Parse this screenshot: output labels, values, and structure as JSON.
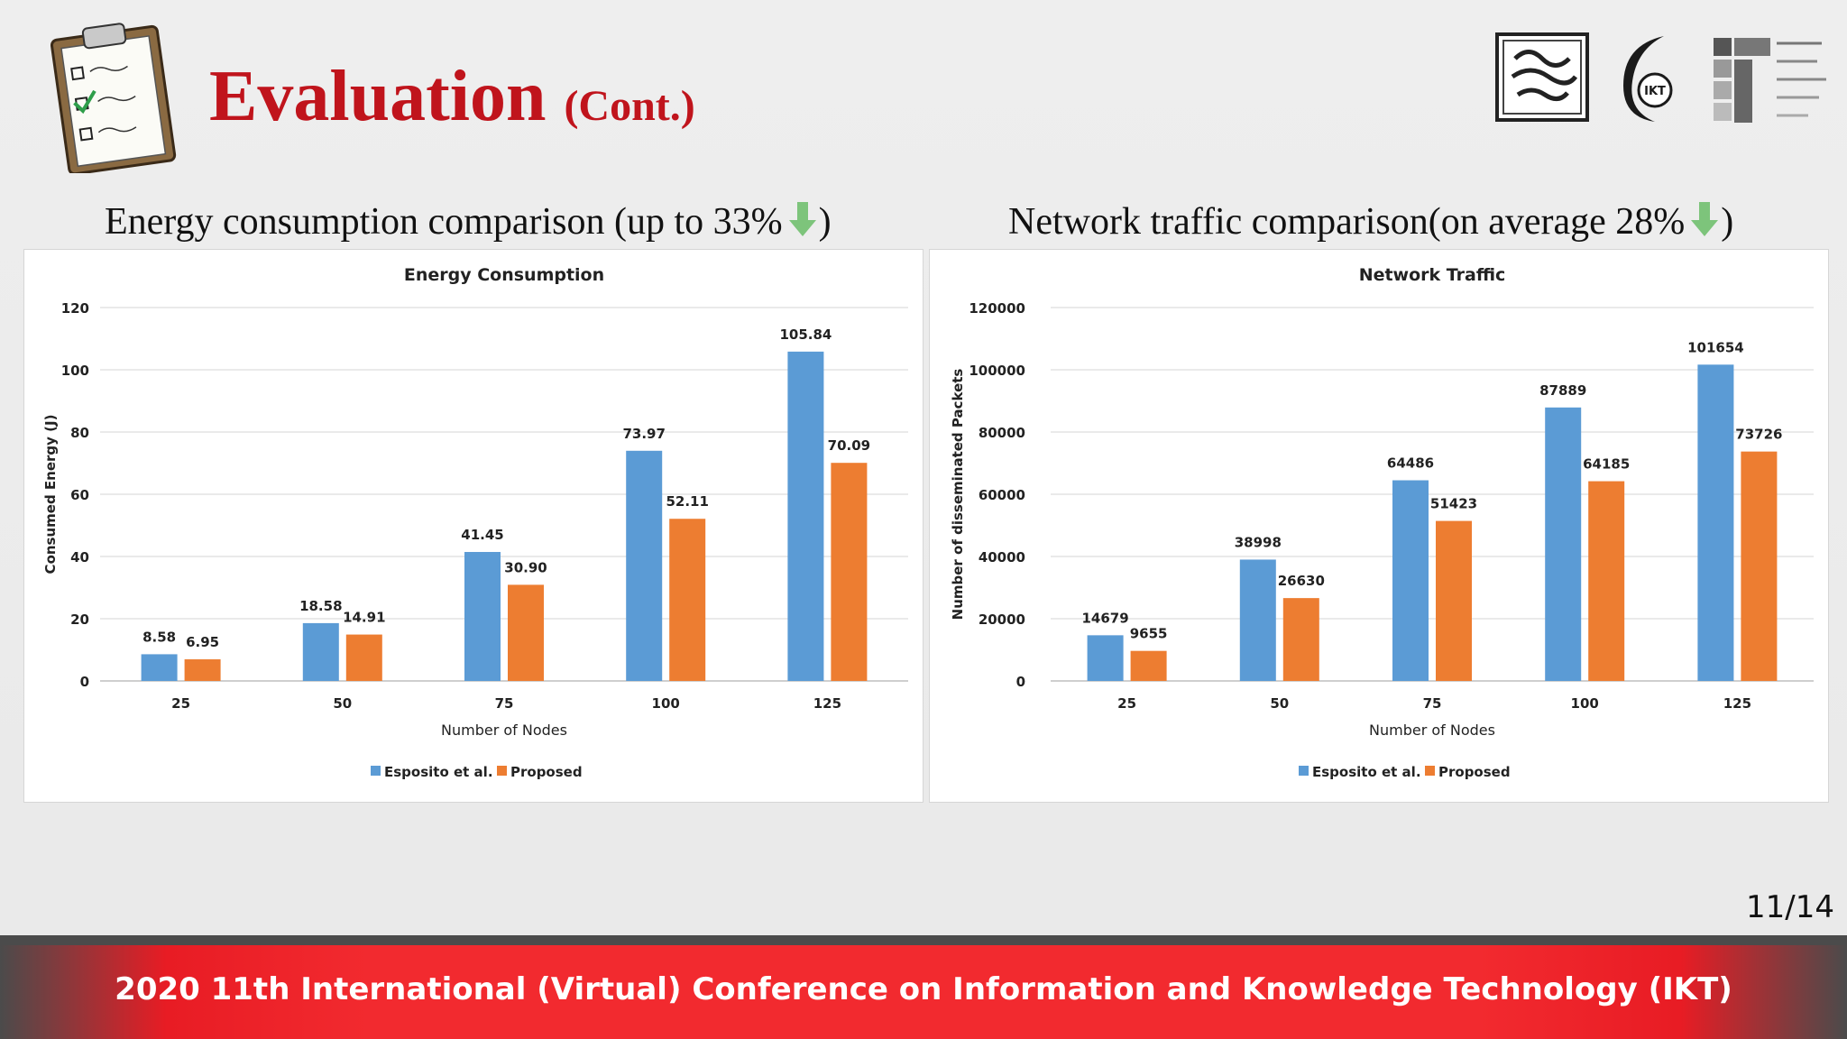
{
  "header": {
    "title": "Evaluation",
    "title_suffix": "(Cont.)"
  },
  "left_caption": {
    "text": "Energy consumption comparison (up to 33%",
    "close": ")"
  },
  "right_caption": {
    "text": "Network traffic comparison(on average 28%",
    "close": ")"
  },
  "icons": {
    "clipboard": "checklist-clipboard-icon",
    "arrow": "down-arrow-icon",
    "logos": [
      "university-logo",
      "ikt-logo",
      "itrc-logo"
    ]
  },
  "colors": {
    "title": "#c0141c",
    "series1": "#5b9bd5",
    "series2": "#ed7d31",
    "arrow": "#7dc47b",
    "footer": "#f22a2f"
  },
  "page_number": "11/14",
  "footer": {
    "text": "2020 11th International (Virtual) Conference on Information and Knowledge Technology (IKT)"
  },
  "chart_data": [
    {
      "type": "bar",
      "title": "Energy Consumption",
      "xlabel": "Number of Nodes",
      "ylabel": "Consumed Energy (J)",
      "categories": [
        "25",
        "50",
        "75",
        "100",
        "125"
      ],
      "ylim": [
        0,
        120
      ],
      "yticks": [
        0,
        20,
        40,
        60,
        80,
        100,
        120
      ],
      "series": [
        {
          "name": "Esposito et al.",
          "values": [
            8.58,
            18.58,
            41.45,
            73.97,
            105.84
          ],
          "labels": [
            "8.58",
            "18.58",
            "41.45",
            "73.97",
            "105.84"
          ]
        },
        {
          "name": "Proposed",
          "values": [
            6.95,
            14.91,
            30.9,
            52.11,
            70.09
          ],
          "labels": [
            "6.95",
            "14.91",
            "30.90",
            "52.11",
            "70.09"
          ]
        }
      ],
      "grid": true,
      "legend": "bottom"
    },
    {
      "type": "bar",
      "title": "Network Traffic",
      "xlabel": "Number of Nodes",
      "ylabel": "Number of disseminated Packets",
      "categories": [
        "25",
        "50",
        "75",
        "100",
        "125"
      ],
      "ylim": [
        0,
        120000
      ],
      "yticks": [
        0,
        20000,
        40000,
        60000,
        80000,
        100000,
        120000
      ],
      "series": [
        {
          "name": "Esposito et al.",
          "values": [
            14679,
            38998,
            64486,
            87889,
            101654
          ],
          "labels": [
            "14679",
            "38998",
            "64486",
            "87889",
            "101654"
          ]
        },
        {
          "name": "Proposed",
          "values": [
            9655,
            26630,
            51423,
            64185,
            73726
          ],
          "labels": [
            "9655",
            "26630",
            "51423",
            "64185",
            "73726"
          ]
        }
      ],
      "grid": true,
      "legend": "bottom"
    }
  ]
}
